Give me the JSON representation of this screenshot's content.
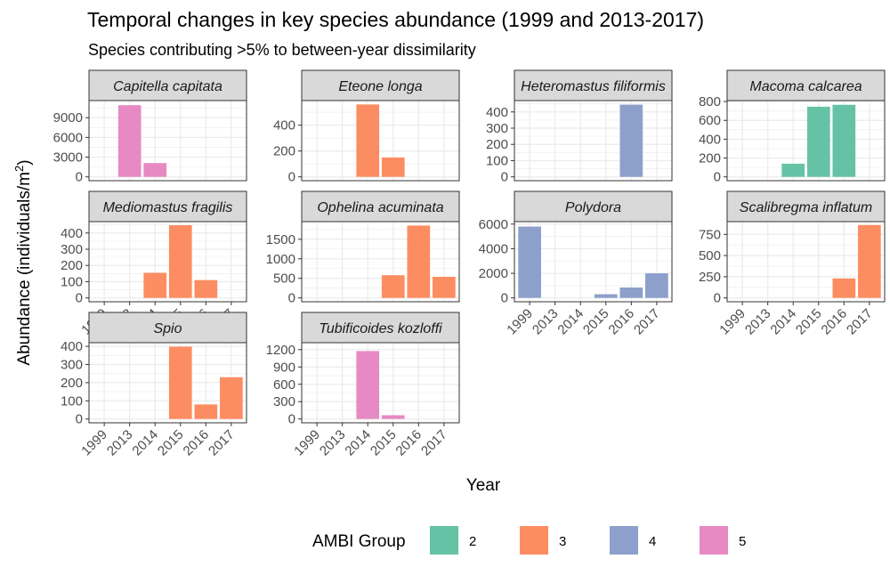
{
  "title": "Temporal changes in key species abundance (1999 and 2013-2017)",
  "subtitle": "Species contributing >5% to between-year dissimilarity",
  "chart_data": {
    "type": "bar",
    "facet": "wrap",
    "categories": [
      "1999",
      "2013",
      "2014",
      "2015",
      "2016",
      "2017"
    ],
    "xlabel": "Year",
    "ylabel_prefix": "Abundance (individuals/m",
    "ylabel_sup": "2",
    "ylabel_suffix": ")",
    "grid": true,
    "legend": {
      "title": "AMBI Group",
      "position": "bottom",
      "items": [
        {
          "label": "2",
          "color": "#66C2A5"
        },
        {
          "label": "3",
          "color": "#FC8D62"
        },
        {
          "label": "4",
          "color": "#8DA0CB"
        },
        {
          "label": "5",
          "color": "#E78AC3"
        }
      ]
    },
    "panels": [
      {
        "name": "Capitella capitata",
        "group": "5",
        "color": "#E78AC3",
        "ylim": [
          0,
          11600
        ],
        "yticks": [
          0,
          3000,
          6000,
          9000
        ],
        "values": [
          null,
          10900,
          2100,
          null,
          null,
          null
        ]
      },
      {
        "name": "Eteone longa",
        "group": "3",
        "color": "#FC8D62",
        "ylim": [
          0,
          590
        ],
        "yticks": [
          0,
          200,
          400
        ],
        "values": [
          null,
          null,
          560,
          150,
          null,
          null
        ]
      },
      {
        "name": "Heteromastus filiformis",
        "group": "4",
        "color": "#8DA0CB",
        "ylim": [
          0,
          470
        ],
        "yticks": [
          0,
          100,
          200,
          300,
          400
        ],
        "values": [
          null,
          null,
          null,
          null,
          445,
          null
        ]
      },
      {
        "name": "Macoma calcarea",
        "group": "2",
        "color": "#66C2A5",
        "ylim": [
          0,
          810
        ],
        "yticks": [
          0,
          200,
          400,
          600,
          800
        ],
        "values": [
          null,
          null,
          140,
          745,
          765,
          null
        ]
      },
      {
        "name": "Mediomastus fragilis",
        "group": "3",
        "color": "#FC8D62",
        "ylim": [
          0,
          470
        ],
        "yticks": [
          0,
          100,
          200,
          300,
          400
        ],
        "values": [
          null,
          null,
          155,
          448,
          110,
          null
        ]
      },
      {
        "name": "Ophelina acuminata",
        "group": "3",
        "color": "#FC8D62",
        "ylim": [
          0,
          1950
        ],
        "yticks": [
          0,
          500,
          1000,
          1500
        ],
        "values": [
          null,
          null,
          null,
          580,
          1850,
          540
        ]
      },
      {
        "name": "Polydora",
        "group": "4",
        "color": "#8DA0CB",
        "ylim": [
          0,
          6200
        ],
        "yticks": [
          0,
          2000,
          4000,
          6000
        ],
        "values": [
          5800,
          null,
          null,
          300,
          850,
          2000
        ]
      },
      {
        "name": "Scalibregma inflatum",
        "group": "3",
        "color": "#FC8D62",
        "ylim": [
          0,
          900
        ],
        "yticks": [
          0,
          250,
          500,
          750
        ],
        "values": [
          null,
          null,
          null,
          null,
          230,
          860
        ]
      },
      {
        "name": "Spio",
        "group": "3",
        "color": "#FC8D62",
        "ylim": [
          0,
          420
        ],
        "yticks": [
          0,
          100,
          200,
          300,
          400
        ],
        "values": [
          null,
          null,
          null,
          398,
          80,
          230
        ]
      },
      {
        "name": "Tubificoides kozloffi",
        "group": "5",
        "color": "#E78AC3",
        "ylim": [
          0,
          1320
        ],
        "yticks": [
          0,
          300,
          600,
          900,
          1200
        ],
        "values": [
          null,
          null,
          1175,
          65,
          null,
          null
        ]
      }
    ]
  }
}
